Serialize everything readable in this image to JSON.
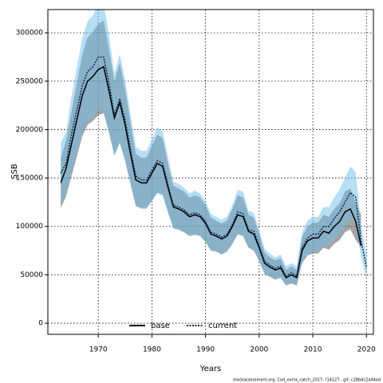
{
  "chart_data": {
    "type": "line",
    "xlabel": "Years",
    "ylabel": "SSB",
    "footnote": "stockassessment.org, Cod_extra_catch_2017, r14127 , git: c28bdc2a44ad",
    "x": [
      1963,
      1964,
      1965,
      1966,
      1967,
      1968,
      1969,
      1970,
      1971,
      1972,
      1973,
      1974,
      1975,
      1976,
      1977,
      1978,
      1979,
      1980,
      1981,
      1982,
      1983,
      1984,
      1985,
      1986,
      1987,
      1988,
      1989,
      1990,
      1991,
      1992,
      1993,
      1994,
      1995,
      1996,
      1997,
      1998,
      1999,
      2000,
      2001,
      2002,
      2003,
      2004,
      2005,
      2006,
      2007,
      2008,
      2009,
      2010,
      2011,
      2012,
      2013,
      2014,
      2015,
      2016,
      2017,
      2018,
      2019,
      2020
    ],
    "series": [
      {
        "name": "base",
        "color": "#000000",
        "band_color": "rgba(90,90,90,0.55)",
        "dash": false,
        "values": [
          145000,
          160000,
          185000,
          210000,
          235000,
          250000,
          255000,
          262000,
          265000,
          240000,
          212000,
          228000,
          205000,
          175000,
          148000,
          145000,
          145000,
          155000,
          165000,
          162000,
          140000,
          120000,
          118000,
          115000,
          110000,
          112000,
          110000,
          103000,
          92000,
          90000,
          87000,
          90000,
          100000,
          112000,
          110000,
          95000,
          92000,
          78000,
          62000,
          58000,
          55000,
          57000,
          47000,
          50000,
          47000,
          75000,
          85000,
          88000,
          88000,
          95000,
          93000,
          100000,
          105000,
          115000,
          118000,
          105000,
          80000,
          null
        ],
        "lower": [
          119000,
          131000,
          152000,
          172000,
          193000,
          205000,
          209000,
          215000,
          217000,
          197000,
          174000,
          187000,
          168000,
          144000,
          121000,
          119000,
          119000,
          127000,
          135000,
          133000,
          115000,
          98000,
          97000,
          94000,
          90000,
          92000,
          90000,
          84000,
          75000,
          74000,
          71000,
          74000,
          82000,
          92000,
          90000,
          78000,
          75000,
          64000,
          51000,
          48000,
          45000,
          47000,
          39000,
          41000,
          39000,
          62000,
          70000,
          72000,
          72000,
          78000,
          76000,
          82000,
          86000,
          94000,
          97000,
          86000,
          78000,
          null
        ],
        "upper": [
          171000,
          189000,
          218000,
          248000,
          277000,
          295000,
          301000,
          309000,
          313000,
          283000,
          250000,
          269000,
          242000,
          207000,
          175000,
          171000,
          171000,
          183000,
          195000,
          191000,
          165000,
          142000,
          139000,
          136000,
          130000,
          132000,
          130000,
          122000,
          109000,
          106000,
          103000,
          106000,
          118000,
          132000,
          130000,
          112000,
          109000,
          92000,
          73000,
          68000,
          65000,
          67000,
          55000,
          59000,
          55000,
          89000,
          100000,
          104000,
          104000,
          112000,
          110000,
          118000,
          124000,
          136000,
          139000,
          124000,
          112000,
          null
        ]
      },
      {
        "name": "current",
        "color": "#0a2a4a",
        "band_color": "rgba(110,190,235,0.5)",
        "dash": true,
        "values": [
          155000,
          165000,
          195000,
          220000,
          245000,
          260000,
          265000,
          275000,
          275000,
          248000,
          215000,
          232000,
          210000,
          180000,
          152000,
          148000,
          148000,
          158000,
          168000,
          165000,
          143000,
          122000,
          120000,
          117000,
          112000,
          114000,
          112000,
          105000,
          94000,
          92000,
          89000,
          92000,
          102000,
          115000,
          113000,
          97000,
          95000,
          80000,
          64000,
          60000,
          57000,
          59000,
          49000,
          52000,
          49000,
          78000,
          88000,
          92000,
          92000,
          100000,
          100000,
          108000,
          115000,
          125000,
          135000,
          130000,
          85000,
          58000
        ],
        "lower": [
          124000,
          132000,
          156000,
          176000,
          196000,
          208000,
          212000,
          220000,
          220000,
          198000,
          172000,
          186000,
          168000,
          144000,
          122000,
          118000,
          118000,
          126000,
          134000,
          132000,
          114000,
          98000,
          96000,
          94000,
          90000,
          91000,
          90000,
          84000,
          75000,
          74000,
          71000,
          74000,
          82000,
          92000,
          90000,
          78000,
          76000,
          64000,
          51000,
          48000,
          46000,
          47000,
          39000,
          42000,
          39000,
          62000,
          70000,
          74000,
          74000,
          80000,
          80000,
          86000,
          92000,
          100000,
          108000,
          104000,
          68000,
          46000
        ],
        "upper": [
          186000,
          198000,
          234000,
          264000,
          294000,
          312000,
          318000,
          330000,
          330000,
          298000,
          258000,
          278000,
          252000,
          216000,
          182000,
          178000,
          178000,
          190000,
          202000,
          198000,
          172000,
          146000,
          144000,
          140000,
          134000,
          137000,
          134000,
          126000,
          113000,
          110000,
          107000,
          110000,
          122000,
          138000,
          136000,
          116000,
          114000,
          96000,
          77000,
          72000,
          68000,
          71000,
          59000,
          62000,
          59000,
          94000,
          106000,
          110000,
          110000,
          120000,
          120000,
          130000,
          138000,
          150000,
          162000,
          156000,
          102000,
          70000
        ]
      }
    ],
    "xlim": [
      1960.6,
      2021.3
    ],
    "ylim": [
      -11500,
      324000
    ],
    "xticks": [
      1970,
      1980,
      1990,
      2000,
      2010,
      2020
    ],
    "yticks": [
      0,
      50000,
      100000,
      150000,
      200000,
      250000,
      300000
    ],
    "grid": true,
    "legend": "bottom"
  }
}
